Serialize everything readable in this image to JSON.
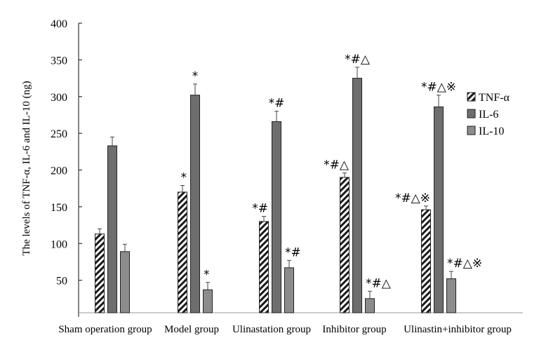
{
  "chart_data": {
    "type": "bar",
    "ylabel": "The levels of TNF-α, IL-6 and IL-10 (ng)",
    "xlabel": "",
    "ylim": [
      0,
      400
    ],
    "yticks": [
      50,
      100,
      150,
      200,
      250,
      300,
      350,
      400
    ],
    "categories": [
      "Sham operation group",
      "Model group",
      "Ulinastation group",
      "Inhibitor group",
      "Ulinastin+inhibitor group"
    ],
    "series": [
      {
        "name": "TNF-α",
        "pattern": "hatch",
        "color": "#222222",
        "values": [
          113,
          170,
          130,
          190,
          146
        ],
        "errors": [
          7,
          9,
          7,
          6,
          5
        ],
        "annotations": [
          "",
          "*",
          "*#",
          "*#△",
          "*#△※"
        ]
      },
      {
        "name": "IL-6",
        "pattern": "solid",
        "color": "#6e6e6e",
        "values": [
          233,
          302,
          266,
          325,
          286
        ],
        "errors": [
          12,
          15,
          14,
          15,
          16
        ],
        "annotations": [
          "",
          "*",
          "*#",
          "*#△",
          "*#△※"
        ]
      },
      {
        "name": "IL-10",
        "pattern": "solid",
        "color": "#8c8c8c",
        "values": [
          89,
          37,
          67,
          25,
          52
        ],
        "errors": [
          10,
          10,
          10,
          10,
          10
        ],
        "annotations": [
          "",
          "*",
          "*#",
          "*#△",
          "*#△※"
        ]
      }
    ],
    "legend": [
      "TNF-α",
      "IL-6",
      "IL-10"
    ],
    "legend_position": "right",
    "grid": false
  }
}
